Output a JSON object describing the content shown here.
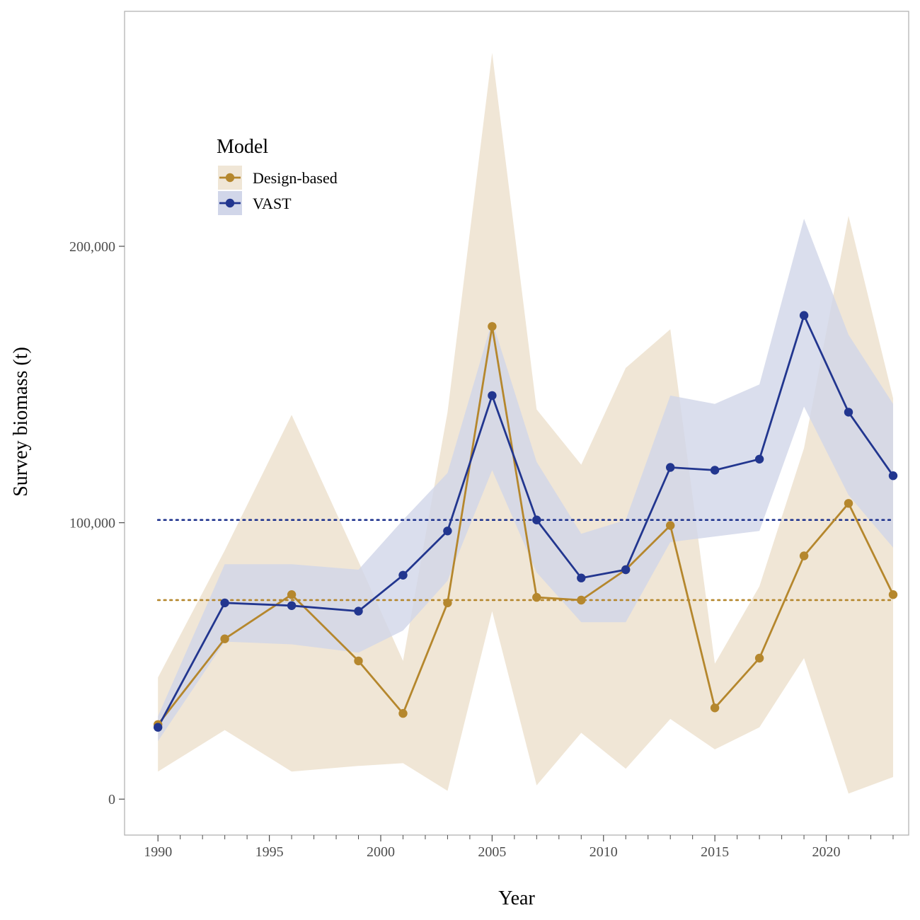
{
  "chart_data": {
    "type": "line",
    "xlabel": "Year",
    "ylabel": "Survey biomass (t)",
    "xlim": [
      1988.5,
      2023.7
    ],
    "ylim": [
      -13000,
      285000
    ],
    "x_ticks": [
      1990,
      1995,
      2000,
      2005,
      2010,
      2015,
      2020
    ],
    "x_tick_labels": [
      "1990",
      "1995",
      "2000",
      "2005",
      "2010",
      "2015",
      "2020"
    ],
    "x_minor_ticks": [
      1991,
      1992,
      1993,
      1994,
      1996,
      1997,
      1998,
      1999,
      2001,
      2002,
      2003,
      2004,
      2006,
      2007,
      2008,
      2009,
      2011,
      2012,
      2013,
      2014,
      2016,
      2017,
      2018,
      2019,
      2021,
      2022,
      2023
    ],
    "y_ticks": [
      0,
      100000,
      200000
    ],
    "y_tick_labels": [
      "0",
      "100,000",
      "200,000"
    ],
    "grid": false,
    "legend": {
      "title": "Model",
      "position": "upper-left",
      "entries": [
        "Design-based",
        "VAST"
      ]
    },
    "series": [
      {
        "name": "Design-based",
        "color": "#B5872D",
        "ribbon_color": "#F0E6D6",
        "x": [
          1990,
          1993,
          1996,
          1999,
          2001,
          2003,
          2005,
          2007,
          2009,
          2011,
          2013,
          2015,
          2017,
          2019,
          2021,
          2023
        ],
        "y": [
          27000,
          58000,
          74000,
          50000,
          31000,
          71000,
          171000,
          73000,
          72000,
          83000,
          99000,
          33000,
          51000,
          88000,
          107000,
          74000
        ],
        "lower": [
          10000,
          25000,
          10000,
          12000,
          13000,
          3000,
          68000,
          5000,
          24000,
          11000,
          29000,
          18000,
          26000,
          51000,
          2000,
          8000
        ],
        "upper": [
          44000,
          90000,
          139000,
          86000,
          50000,
          140000,
          270000,
          141000,
          121000,
          156000,
          170000,
          49000,
          77000,
          127000,
          211000,
          145000
        ],
        "mean": 72000
      },
      {
        "name": "VAST",
        "color": "#22368F",
        "ribbon_color": "#D1D6E9",
        "x": [
          1990,
          1993,
          1996,
          1999,
          2001,
          2003,
          2005,
          2007,
          2009,
          2011,
          2013,
          2015,
          2017,
          2019,
          2021,
          2023
        ],
        "y": [
          26000,
          71000,
          70000,
          68000,
          81000,
          97000,
          146000,
          101000,
          80000,
          83000,
          120000,
          119000,
          123000,
          175000,
          140000,
          117000
        ],
        "lower": [
          21000,
          57000,
          56000,
          53000,
          61000,
          79000,
          119000,
          82000,
          64000,
          64000,
          93000,
          95000,
          97000,
          142000,
          110000,
          91000
        ],
        "upper": [
          30000,
          85000,
          85000,
          83000,
          101000,
          118000,
          173000,
          122000,
          96000,
          101000,
          146000,
          143000,
          150000,
          210000,
          168000,
          143000
        ],
        "mean": 101000
      }
    ]
  }
}
